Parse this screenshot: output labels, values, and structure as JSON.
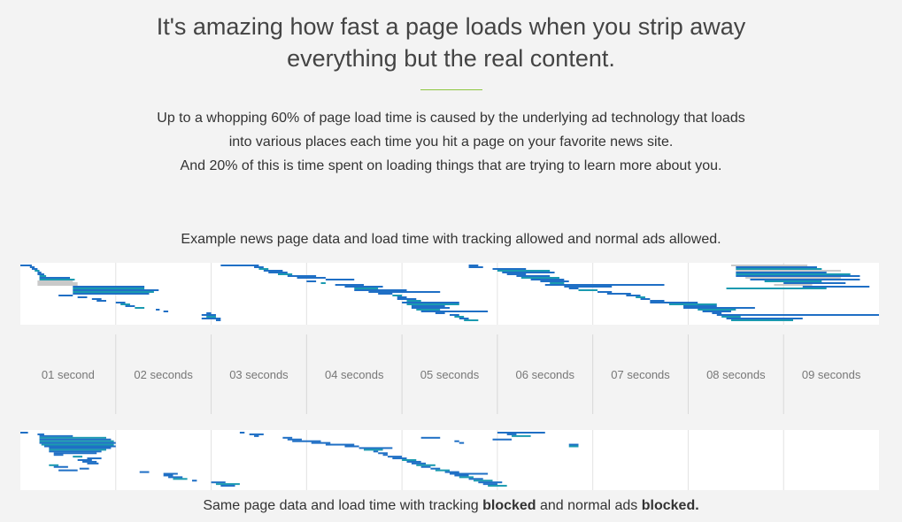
{
  "headline": {
    "line1": "It's amazing how fast a page loads when you strip away",
    "line2": "everything but the real content."
  },
  "intro": {
    "line1": "Up to a whopping 60% of page load time is caused by the underlying ad technology that loads",
    "line2": "into various places each time you hit a page on your favorite news site.",
    "line3": "And 20% of this is time spent on loading things that are trying to learn more about you."
  },
  "captions": {
    "top": "Example news page data and load time with tracking allowed and normal ads allowed.",
    "bottom_prefix": "Same page data and load time with tracking ",
    "bottom_bold1": "blocked",
    "bottom_mid": " and normal ads ",
    "bottom_bold2": "blocked."
  },
  "colors": {
    "accent_rule": "#8dc63f",
    "bar_blue": "#1f6fc5",
    "bar_teal": "#1a9ab0",
    "bar_gray": "#c9c9c9",
    "bar_light": "#d8d8d8"
  },
  "chart_data": [
    {
      "type": "waterfall",
      "title": "Example news page data and load time with tracking allowed and normal ads allowed.",
      "x_unit": "seconds",
      "xlim": [
        0,
        9
      ],
      "tick_labels": [
        "01 second",
        "02 seconds",
        "03 seconds",
        "04 seconds",
        "05 seconds",
        "06 seconds",
        "07 seconds",
        "08 seconds",
        "09 seconds"
      ],
      "requests": [
        {
          "start": 0.0,
          "end": 0.12,
          "c": "b"
        },
        {
          "start": 0.1,
          "end": 0.15,
          "c": "b"
        },
        {
          "start": 0.12,
          "end": 0.18,
          "c": "b"
        },
        {
          "start": 0.15,
          "end": 0.2,
          "c": "t"
        },
        {
          "start": 0.18,
          "end": 0.22,
          "c": "b"
        },
        {
          "start": 0.18,
          "end": 0.25,
          "c": "b"
        },
        {
          "start": 0.2,
          "end": 0.27,
          "c": "t"
        },
        {
          "start": 0.2,
          "end": 0.52,
          "c": "b"
        },
        {
          "start": 0.2,
          "end": 0.57,
          "c": "t"
        },
        {
          "start": 0.18,
          "end": 0.55,
          "c": "g"
        },
        {
          "start": 0.18,
          "end": 0.6,
          "c": "g"
        },
        {
          "start": 0.18,
          "end": 0.6,
          "c": "g"
        },
        {
          "start": 0.55,
          "end": 1.3,
          "c": "b"
        },
        {
          "start": 0.55,
          "end": 1.3,
          "c": "t"
        },
        {
          "start": 0.55,
          "end": 1.45,
          "c": "b"
        },
        {
          "start": 0.55,
          "end": 1.4,
          "c": "t"
        },
        {
          "start": 0.55,
          "end": 1.35,
          "c": "b"
        },
        {
          "start": 0.4,
          "end": 0.55,
          "c": "b"
        },
        {
          "start": 0.6,
          "end": 0.7,
          "c": "b"
        },
        {
          "start": 0.75,
          "end": 0.85,
          "c": "b"
        },
        {
          "start": 0.8,
          "end": 0.9,
          "c": "b"
        },
        {
          "start": 1.0,
          "end": 1.1,
          "c": "b"
        },
        {
          "start": 1.05,
          "end": 1.15,
          "c": "t"
        },
        {
          "start": 1.1,
          "end": 1.2,
          "c": "b"
        },
        {
          "start": 1.2,
          "end": 1.3,
          "c": "t"
        },
        {
          "start": 1.42,
          "end": 1.46,
          "c": "b"
        },
        {
          "start": 1.5,
          "end": 1.55,
          "c": "b"
        },
        {
          "start": 1.95,
          "end": 2.0,
          "c": "b"
        },
        {
          "start": 1.9,
          "end": 2.05,
          "c": "b"
        },
        {
          "start": 1.95,
          "end": 2.05,
          "c": "t"
        },
        {
          "start": 1.9,
          "end": 2.1,
          "c": "b"
        },
        {
          "start": 2.05,
          "end": 2.1,
          "c": "b"
        },
        {
          "start": 2.1,
          "end": 2.5,
          "c": "b"
        },
        {
          "start": 2.45,
          "end": 2.55,
          "c": "b"
        },
        {
          "start": 2.5,
          "end": 2.6,
          "c": "t"
        },
        {
          "start": 2.55,
          "end": 2.75,
          "c": "b"
        },
        {
          "start": 2.6,
          "end": 2.8,
          "c": "b"
        },
        {
          "start": 2.7,
          "end": 2.85,
          "c": "t"
        },
        {
          "start": 2.8,
          "end": 3.1,
          "c": "b"
        },
        {
          "start": 2.9,
          "end": 3.2,
          "c": "b"
        },
        {
          "start": 3.2,
          "end": 3.5,
          "c": "b"
        },
        {
          "start": 3.0,
          "end": 3.1,
          "c": "b"
        },
        {
          "start": 3.15,
          "end": 3.2,
          "c": "t"
        },
        {
          "start": 3.3,
          "end": 3.6,
          "c": "b"
        },
        {
          "start": 3.4,
          "end": 3.8,
          "c": "b"
        },
        {
          "start": 3.5,
          "end": 3.75,
          "c": "t"
        },
        {
          "start": 3.5,
          "end": 4.05,
          "c": "b"
        },
        {
          "start": 3.65,
          "end": 4.4,
          "c": "b"
        },
        {
          "start": 3.75,
          "end": 3.9,
          "c": "b"
        },
        {
          "start": 3.9,
          "end": 4.0,
          "c": "t"
        },
        {
          "start": 3.95,
          "end": 4.05,
          "c": "b"
        },
        {
          "start": 3.95,
          "end": 4.15,
          "c": "b"
        },
        {
          "start": 4.05,
          "end": 4.2,
          "c": "t"
        },
        {
          "start": 4.0,
          "end": 4.6,
          "c": "b"
        },
        {
          "start": 4.05,
          "end": 4.6,
          "c": "t"
        },
        {
          "start": 4.1,
          "end": 4.45,
          "c": "b"
        },
        {
          "start": 4.1,
          "end": 4.5,
          "c": "b"
        },
        {
          "start": 4.15,
          "end": 4.4,
          "c": "t"
        },
        {
          "start": 4.2,
          "end": 4.9,
          "c": "b"
        },
        {
          "start": 4.35,
          "end": 4.45,
          "c": "b"
        },
        {
          "start": 4.5,
          "end": 4.6,
          "c": "b"
        },
        {
          "start": 4.55,
          "end": 4.65,
          "c": "t"
        },
        {
          "start": 4.6,
          "end": 4.7,
          "c": "b"
        },
        {
          "start": 4.65,
          "end": 4.8,
          "c": "t"
        },
        {
          "start": 4.7,
          "end": 4.8,
          "c": "b"
        },
        {
          "start": 4.7,
          "end": 4.85,
          "c": "b"
        },
        {
          "start": 4.95,
          "end": 5.3,
          "c": "b"
        },
        {
          "start": 5.0,
          "end": 5.55,
          "c": "t"
        },
        {
          "start": 5.05,
          "end": 5.6,
          "c": "b"
        },
        {
          "start": 5.1,
          "end": 5.3,
          "c": "b"
        },
        {
          "start": 5.2,
          "end": 5.55,
          "c": "b"
        },
        {
          "start": 5.25,
          "end": 5.65,
          "c": "t"
        },
        {
          "start": 5.35,
          "end": 5.7,
          "c": "b"
        },
        {
          "start": 5.45,
          "end": 5.75,
          "c": "b"
        },
        {
          "start": 5.55,
          "end": 5.7,
          "c": "t"
        },
        {
          "start": 5.5,
          "end": 6.75,
          "c": "b"
        },
        {
          "start": 5.7,
          "end": 6.2,
          "c": "b"
        },
        {
          "start": 5.75,
          "end": 5.85,
          "c": "b"
        },
        {
          "start": 5.85,
          "end": 6.05,
          "c": "t"
        },
        {
          "start": 6.05,
          "end": 6.2,
          "c": "b"
        },
        {
          "start": 6.15,
          "end": 6.4,
          "c": "b"
        },
        {
          "start": 6.35,
          "end": 6.5,
          "c": "b"
        },
        {
          "start": 6.45,
          "end": 6.55,
          "c": "t"
        },
        {
          "start": 6.5,
          "end": 6.6,
          "c": "b"
        },
        {
          "start": 6.6,
          "end": 6.75,
          "c": "b"
        },
        {
          "start": 6.6,
          "end": 7.1,
          "c": "b"
        },
        {
          "start": 6.8,
          "end": 7.3,
          "c": "t"
        },
        {
          "start": 6.95,
          "end": 7.3,
          "c": "b"
        },
        {
          "start": 6.95,
          "end": 7.7,
          "c": "b"
        },
        {
          "start": 7.1,
          "end": 7.5,
          "c": "t"
        },
        {
          "start": 7.15,
          "end": 7.45,
          "c": "b"
        },
        {
          "start": 7.25,
          "end": 7.35,
          "c": "b"
        },
        {
          "start": 7.3,
          "end": 9.0,
          "c": "b"
        },
        {
          "start": 7.35,
          "end": 7.55,
          "c": "t"
        },
        {
          "start": 7.4,
          "end": 8.2,
          "c": "b"
        },
        {
          "start": 7.45,
          "end": 8.1,
          "c": "t"
        },
        {
          "start": 7.45,
          "end": 8.25,
          "c": "g"
        },
        {
          "start": 7.5,
          "end": 8.35,
          "c": "b"
        },
        {
          "start": 7.5,
          "end": 8.4,
          "c": "t"
        },
        {
          "start": 7.5,
          "end": 8.6,
          "c": "g"
        },
        {
          "start": 7.5,
          "end": 8.45,
          "c": "b"
        },
        {
          "start": 7.5,
          "end": 8.7,
          "c": "t"
        },
        {
          "start": 7.5,
          "end": 8.8,
          "c": "b"
        },
        {
          "start": 7.6,
          "end": 8.6,
          "c": "g"
        },
        {
          "start": 7.65,
          "end": 8.8,
          "c": "b"
        },
        {
          "start": 7.8,
          "end": 8.4,
          "c": "t"
        },
        {
          "start": 8.0,
          "end": 8.65,
          "c": "b"
        },
        {
          "start": 7.9,
          "end": 8.3,
          "c": "g"
        },
        {
          "start": 8.2,
          "end": 8.9,
          "c": "b"
        },
        {
          "start": 7.4,
          "end": 8.45,
          "c": "t"
        }
      ]
    },
    {
      "type": "waterfall",
      "title": "Same page data and load time with tracking blocked and normal ads blocked.",
      "x_unit": "seconds",
      "xlim": [
        0,
        9
      ],
      "requests": [
        {
          "start": 0.0,
          "end": 0.08,
          "c": "b"
        },
        {
          "start": 0.18,
          "end": 0.25,
          "c": "b"
        },
        {
          "start": 0.2,
          "end": 0.55,
          "c": "b"
        },
        {
          "start": 0.2,
          "end": 0.9,
          "c": "t"
        },
        {
          "start": 0.2,
          "end": 0.95,
          "c": "b"
        },
        {
          "start": 0.2,
          "end": 0.98,
          "c": "t"
        },
        {
          "start": 0.2,
          "end": 1.0,
          "c": "b"
        },
        {
          "start": 0.22,
          "end": 0.98,
          "c": "t"
        },
        {
          "start": 0.25,
          "end": 1.0,
          "c": "b"
        },
        {
          "start": 0.3,
          "end": 0.95,
          "c": "b"
        },
        {
          "start": 0.3,
          "end": 0.9,
          "c": "t"
        },
        {
          "start": 0.3,
          "end": 0.85,
          "c": "b"
        },
        {
          "start": 0.35,
          "end": 0.8,
          "c": "b"
        },
        {
          "start": 0.35,
          "end": 0.45,
          "c": "b"
        },
        {
          "start": 0.55,
          "end": 0.65,
          "c": "t"
        },
        {
          "start": 0.7,
          "end": 0.85,
          "c": "b"
        },
        {
          "start": 0.6,
          "end": 0.75,
          "c": "b"
        },
        {
          "start": 0.65,
          "end": 0.8,
          "c": "b"
        },
        {
          "start": 0.7,
          "end": 0.82,
          "c": "b"
        },
        {
          "start": 0.3,
          "end": 0.4,
          "c": "t"
        },
        {
          "start": 0.35,
          "end": 0.5,
          "c": "b"
        },
        {
          "start": 0.62,
          "end": 0.72,
          "c": "b"
        },
        {
          "start": 0.4,
          "end": 0.6,
          "c": "b"
        },
        {
          "start": 1.25,
          "end": 1.35,
          "c": "b"
        },
        {
          "start": 1.5,
          "end": 1.65,
          "c": "b"
        },
        {
          "start": 1.5,
          "end": 1.6,
          "c": "b"
        },
        {
          "start": 1.55,
          "end": 1.7,
          "c": "b"
        },
        {
          "start": 1.6,
          "end": 1.75,
          "c": "t"
        },
        {
          "start": 1.8,
          "end": 1.85,
          "c": "b"
        },
        {
          "start": 2.0,
          "end": 2.15,
          "c": "b"
        },
        {
          "start": 2.05,
          "end": 2.3,
          "c": "t"
        },
        {
          "start": 2.1,
          "end": 2.25,
          "c": "b"
        },
        {
          "start": 2.3,
          "end": 2.35,
          "c": "b"
        },
        {
          "start": 2.4,
          "end": 2.55,
          "c": "b"
        },
        {
          "start": 2.45,
          "end": 2.5,
          "c": "b"
        },
        {
          "start": 2.75,
          "end": 2.85,
          "c": "b"
        },
        {
          "start": 2.8,
          "end": 2.95,
          "c": "b"
        },
        {
          "start": 2.85,
          "end": 3.15,
          "c": "b"
        },
        {
          "start": 3.05,
          "end": 3.25,
          "c": "b"
        },
        {
          "start": 3.2,
          "end": 3.5,
          "c": "b"
        },
        {
          "start": 3.4,
          "end": 3.55,
          "c": "b"
        },
        {
          "start": 3.55,
          "end": 3.9,
          "c": "b"
        },
        {
          "start": 3.6,
          "end": 3.8,
          "c": "t"
        },
        {
          "start": 3.7,
          "end": 3.75,
          "c": "b"
        },
        {
          "start": 3.75,
          "end": 3.85,
          "c": "b"
        },
        {
          "start": 3.8,
          "end": 3.85,
          "c": "b"
        },
        {
          "start": 3.85,
          "end": 4.0,
          "c": "b"
        },
        {
          "start": 3.9,
          "end": 4.05,
          "c": "b"
        },
        {
          "start": 4.0,
          "end": 4.15,
          "c": "t"
        },
        {
          "start": 4.05,
          "end": 4.2,
          "c": "b"
        },
        {
          "start": 4.1,
          "end": 4.25,
          "c": "b"
        },
        {
          "start": 4.15,
          "end": 4.35,
          "c": "t"
        },
        {
          "start": 4.2,
          "end": 4.3,
          "c": "b"
        },
        {
          "start": 4.3,
          "end": 4.4,
          "c": "b"
        },
        {
          "start": 4.35,
          "end": 4.5,
          "c": "t"
        },
        {
          "start": 4.45,
          "end": 4.6,
          "c": "b"
        },
        {
          "start": 4.5,
          "end": 4.9,
          "c": "b"
        },
        {
          "start": 4.55,
          "end": 4.7,
          "c": "b"
        },
        {
          "start": 4.6,
          "end": 4.75,
          "c": "t"
        },
        {
          "start": 4.7,
          "end": 4.85,
          "c": "b"
        },
        {
          "start": 4.75,
          "end": 4.95,
          "c": "t"
        },
        {
          "start": 4.8,
          "end": 5.05,
          "c": "b"
        },
        {
          "start": 4.85,
          "end": 5.0,
          "c": "b"
        },
        {
          "start": 4.9,
          "end": 5.1,
          "c": "t"
        },
        {
          "start": 5.0,
          "end": 5.5,
          "c": "b"
        },
        {
          "start": 5.1,
          "end": 5.2,
          "c": "b"
        },
        {
          "start": 5.15,
          "end": 5.35,
          "c": "t"
        },
        {
          "start": 4.2,
          "end": 4.4,
          "c": "b"
        },
        {
          "start": 4.95,
          "end": 5.15,
          "c": "b"
        },
        {
          "start": 4.55,
          "end": 4.6,
          "c": "b"
        },
        {
          "start": 4.6,
          "end": 4.65,
          "c": "b"
        },
        {
          "start": 5.75,
          "end": 5.85,
          "c": "b"
        },
        {
          "start": 5.75,
          "end": 5.85,
          "c": "t"
        }
      ]
    }
  ]
}
